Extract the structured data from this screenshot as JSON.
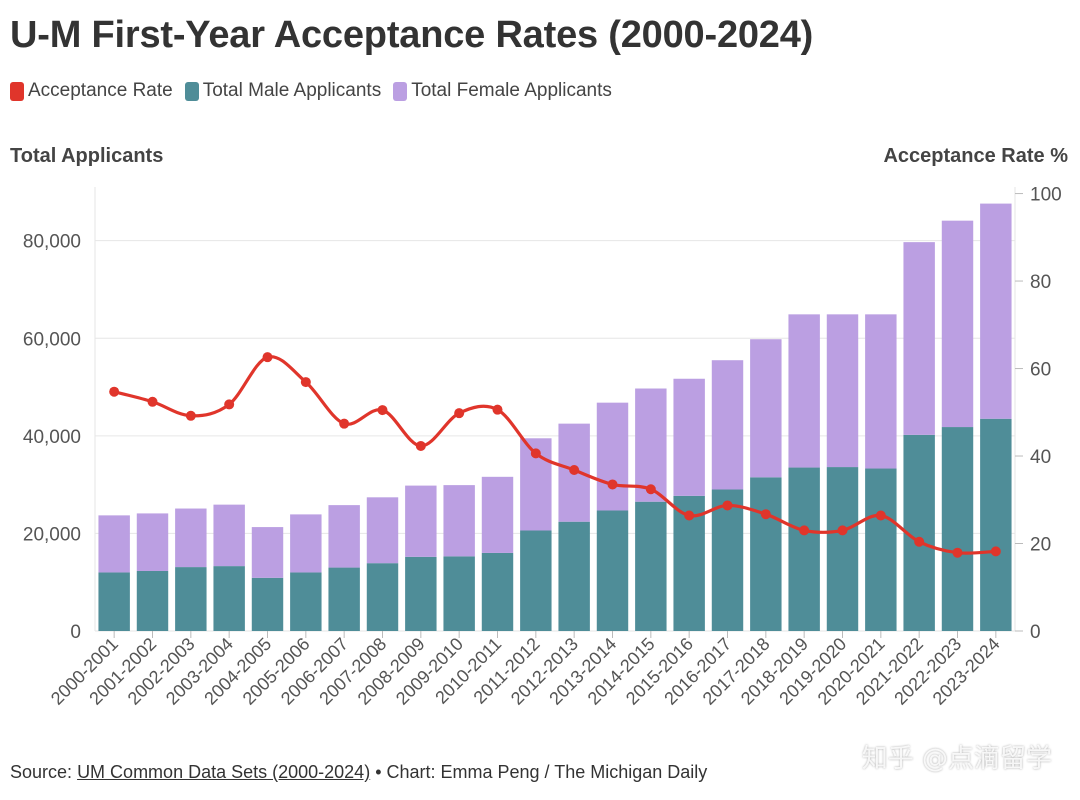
{
  "colors": {
    "rate": "#e0352b",
    "male": "#4f8d98",
    "female": "#bb9fe2",
    "grid": "#e6e6e6",
    "tick_text": "#555555"
  },
  "chart_data": {
    "type": "bar",
    "title": "U-M First-Year Acceptance Rates (2000-2024)",
    "ylabel": "Total Applicants",
    "y2label": "Acceptance Rate %",
    "legend": [
      "Acceptance Rate",
      "Total Male Applicants",
      "Total Female Applicants"
    ],
    "legend_position": "top-left",
    "ylim": [
      0,
      91000
    ],
    "y2lim": [
      0,
      101.5
    ],
    "yticks": [
      0,
      20000,
      40000,
      60000,
      80000
    ],
    "yticklabels": [
      "0",
      "20,000",
      "40,000",
      "60,000",
      "80,000"
    ],
    "y2ticks": [
      0,
      20,
      40,
      60,
      80,
      100
    ],
    "y2ticklabels": [
      "0",
      "20",
      "40",
      "60",
      "80",
      "100"
    ],
    "categories": [
      "2000-2001",
      "2001-2002",
      "2002-2003",
      "2003-2004",
      "2004-2005",
      "2005-2006",
      "2006-2007",
      "2007-2008",
      "2008-2009",
      "2009-2010",
      "2010-2011",
      "2011-2012",
      "2012-2013",
      "2013-2014",
      "2014-2015",
      "2015-2016",
      "2016-2017",
      "2017-2018",
      "2018-2019",
      "2019-2020",
      "2020-2021",
      "2021-2022",
      "2022-2023",
      "2023-2024"
    ],
    "series": [
      {
        "name": "Total Male Applicants",
        "type": "bar",
        "stack": "applicants",
        "values": [
          12000,
          12300,
          13100,
          13300,
          10900,
          12000,
          13000,
          13900,
          15200,
          15300,
          16000,
          20600,
          22400,
          24700,
          26500,
          27700,
          29000,
          31500,
          33500,
          33600,
          33300,
          40200,
          41800,
          43500
        ]
      },
      {
        "name": "Total Female Applicants",
        "type": "bar",
        "stack": "applicants",
        "values": [
          11700,
          11800,
          12000,
          12600,
          10400,
          11900,
          12800,
          13500,
          14600,
          14600,
          15600,
          18900,
          20100,
          22100,
          23200,
          24000,
          26500,
          28300,
          31400,
          31300,
          31600,
          39500,
          42300,
          44100
        ]
      },
      {
        "name": "Acceptance Rate",
        "type": "line",
        "axis": "right",
        "values": [
          54.7,
          52.4,
          49.2,
          51.8,
          62.6,
          56.9,
          47.4,
          50.5,
          42.3,
          49.8,
          50.6,
          40.6,
          36.8,
          33.5,
          32.4,
          26.4,
          28.7,
          26.7,
          23.0,
          23.0,
          26.4,
          20.4,
          17.9,
          18.2
        ]
      }
    ]
  },
  "footer": {
    "source_prefix": "Source:",
    "source_link": "UM Common Data Sets (2000-2024)",
    "credit": " • Chart: Emma Peng / The Michigan Daily"
  },
  "watermark": "知乎 @点滴留学"
}
